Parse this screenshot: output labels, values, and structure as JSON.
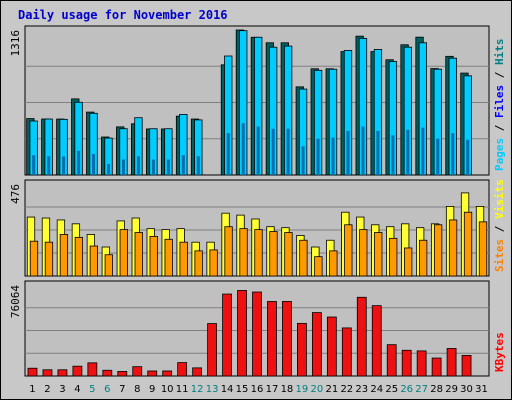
{
  "chart_data": {
    "type": "bar",
    "title": "Daily usage for November 2016",
    "colors": {
      "background": "#c8c8c8",
      "panel": "#c0c0c0",
      "grid": "#808080",
      "title": "#0000cc",
      "hits": "#008080",
      "hits_fill": "#006060",
      "files": "#0000ff",
      "files_fill": "#00ccff",
      "pages": "#00ccff",
      "sites": "#ff8000",
      "sites_fill": "#ff9900",
      "visits": "#ffff00",
      "visits_fill": "#ffff33",
      "kbytes": "#ff0000",
      "kbytes_fill": "#ee1111",
      "weekend": "#008080",
      "weekday": "#000000"
    },
    "categories": [
      "1",
      "2",
      "3",
      "4",
      "5",
      "6",
      "7",
      "8",
      "9",
      "10",
      "11",
      "12",
      "13",
      "14",
      "15",
      "16",
      "17",
      "18",
      "19",
      "20",
      "21",
      "22",
      "23",
      "24",
      "25",
      "26",
      "27",
      "28",
      "29",
      "30",
      "31"
    ],
    "weekend_days": [
      5,
      6,
      12,
      13,
      19,
      20,
      26,
      27
    ],
    "panels": [
      {
        "name": "hits-files-pages",
        "ymax_label": "1316",
        "ymax": 1316,
        "side_labels": [
          {
            "text": "Pages",
            "color": "#00ccff"
          },
          {
            "text": " / ",
            "color": "#000000"
          },
          {
            "text": "Files",
            "color": "#0000ff"
          },
          {
            "text": " / ",
            "color": "#000000"
          },
          {
            "text": "Hits",
            "color": "#008080"
          }
        ],
        "series": [
          {
            "name": "Hits",
            "values": [
              512,
              508,
              508,
              691,
              571,
              345,
              437,
              465,
              418,
              418,
              534,
              508,
              0,
              1000,
              1316,
              1250,
              1200,
              1200,
              800,
              964,
              964,
              1120,
              1260,
              1120,
              1046,
              1182,
              1251,
              966,
              1077,
              925,
              0
            ]
          },
          {
            "name": "Files",
            "values": [
              490,
              508,
              505,
              660,
              560,
              335,
              420,
              520,
              420,
              420,
              550,
              500,
              0,
              1080,
              1310,
              1250,
              1160,
              1170,
              780,
              950,
              960,
              1130,
              1240,
              1140,
              1030,
              1160,
              1200,
              960,
              1060,
              900,
              0
            ]
          },
          {
            "name": "Pages",
            "values": [
              180,
              170,
              168,
              220,
              190,
              100,
              140,
              170,
              140,
              140,
              180,
              170,
              0,
              380,
              470,
              440,
              420,
              420,
              260,
              330,
              340,
              400,
              440,
              400,
              360,
              410,
              430,
              330,
              380,
              320,
              0
            ]
          }
        ]
      },
      {
        "name": "sites-visits",
        "ymax_label": "476",
        "ymax": 476,
        "side_labels": [
          {
            "text": "Sites",
            "color": "#ff8000"
          },
          {
            "text": " / ",
            "color": "#000000"
          },
          {
            "text": "Visits",
            "color": "#ffff00"
          }
        ],
        "series": [
          {
            "name": "Visits",
            "values": [
              305,
              300,
              290,
              270,
              215,
              150,
              285,
              300,
              245,
              240,
              245,
              175,
              175,
              325,
              315,
              295,
              255,
              250,
              210,
              150,
              185,
              330,
              305,
              265,
              255,
              270,
              250,
              270,
              360,
              430,
              360
            ]
          },
          {
            "name": "Sites",
            "values": [
              180,
              175,
              215,
              200,
              155,
              110,
              240,
              225,
              205,
              190,
              175,
              130,
              135,
              255,
              245,
              240,
              230,
              225,
              185,
              100,
              130,
              265,
              240,
              225,
              195,
              145,
              185,
              265,
              290,
              330,
              280
            ]
          }
        ]
      },
      {
        "name": "kbytes",
        "ymax_label": "76064",
        "ymax": 76064,
        "side_labels": [
          {
            "text": "KBytes",
            "color": "#ff0000"
          }
        ],
        "series": [
          {
            "name": "KBytes",
            "values": [
              6500,
              5200,
              5200,
              8200,
              11000,
              4800,
              3800,
              7800,
              4200,
              4200,
              11200,
              6800,
              43800,
              68500,
              71500,
              70200,
              62300,
              62300,
              44000,
              53000,
              49300,
              40200,
              65800,
              58800,
              26200,
              21500,
              21000,
              15000,
              23000,
              17200,
              0
            ]
          }
        ]
      }
    ]
  }
}
